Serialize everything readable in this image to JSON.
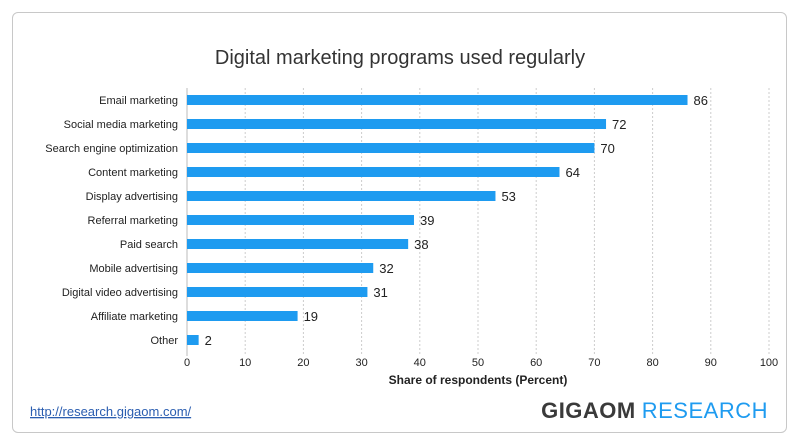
{
  "chart_data": {
    "type": "bar",
    "orientation": "horizontal",
    "title": "Digital marketing programs used regularly",
    "xlabel": "Share of respondents (Percent)",
    "ylabel": "",
    "xlim": [
      0,
      100
    ],
    "ticks": [
      0,
      10,
      20,
      30,
      40,
      50,
      60,
      70,
      80,
      90,
      100
    ],
    "grid": true,
    "bar_color": "#1e9bf0",
    "categories": [
      "Email marketing",
      "Social media marketing",
      "Search engine optimization",
      "Content marketing",
      "Display advertising",
      "Referral marketing",
      "Paid search",
      "Mobile advertising",
      "Digital video advertising",
      "Affiliate marketing",
      "Other"
    ],
    "values": [
      86,
      72,
      70,
      64,
      53,
      39,
      38,
      32,
      31,
      19,
      2
    ]
  },
  "footer": {
    "url": "http://research.gigaom.com/",
    "brand_part1": "GIGAOM",
    "brand_part2": "RESEARCH"
  }
}
